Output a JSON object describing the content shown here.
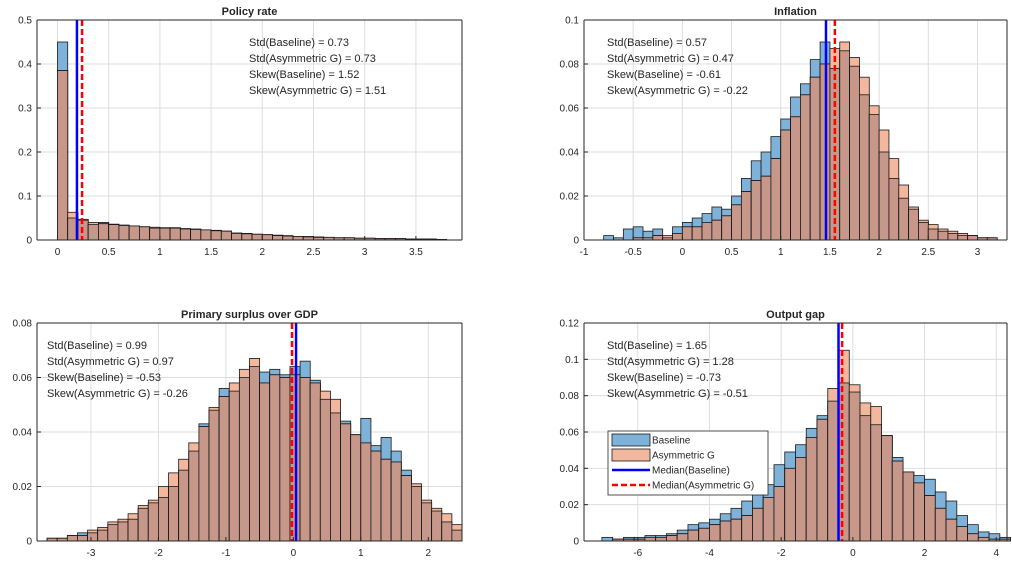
{
  "colors": {
    "baseline_fill": "#7fb2d9",
    "asym_fill": "#c7978a",
    "asym_only_fill": "#f2b79d",
    "median_baseline": "#0000ff",
    "median_asym": "#ff0000",
    "grid": "#dedede",
    "axis": "#262626"
  },
  "chart_data": [
    {
      "type": "bar",
      "title": "Policy rate",
      "xlim": [
        -0.2,
        3.95
      ],
      "ylim": [
        0,
        0.5
      ],
      "xticks": [
        0,
        0.5,
        1,
        1.5,
        2,
        2.5,
        3,
        3.5
      ],
      "xtick_labels": [
        "0",
        "0.5",
        "1",
        "1.5",
        "2",
        "2.5",
        "3",
        "3.5"
      ],
      "yticks": [
        0,
        0.1,
        0.2,
        0.3,
        0.4,
        0.5
      ],
      "ytick_labels": [
        "0",
        "0.1",
        "0.2",
        "0.3",
        "0.4",
        "0.5"
      ],
      "bin_start": 0,
      "bin_width": 0.1,
      "series": [
        {
          "name": "Baseline",
          "values": [
            0.45,
            0.05,
            0.045,
            0.035,
            0.04,
            0.035,
            0.034,
            0.032,
            0.03,
            0.027,
            0.028,
            0.027,
            0.026,
            0.025,
            0.023,
            0.022,
            0.02,
            0.015,
            0.014,
            0.013,
            0.012,
            0.01,
            0.009,
            0.008,
            0.007,
            0.006,
            0.006,
            0.005,
            0.005,
            0.004,
            0.004,
            0.003,
            0.003,
            0.003,
            0.002,
            0.002,
            0.002,
            0.001
          ]
        },
        {
          "name": "Asymmetric G",
          "values": [
            0.385,
            0.063,
            0.047,
            0.04,
            0.037,
            0.036,
            0.033,
            0.032,
            0.03,
            0.029,
            0.027,
            0.028,
            0.025,
            0.024,
            0.023,
            0.021,
            0.02,
            0.016,
            0.015,
            0.013,
            0.012,
            0.011,
            0.01,
            0.008,
            0.008,
            0.007,
            0.006,
            0.005,
            0.005,
            0.004,
            0.004,
            0.003,
            0.003,
            0.003,
            0.002,
            0.002,
            0.002,
            0.001
          ]
        }
      ],
      "median_baseline": 0.19,
      "median_asym": 0.24,
      "stats": [
        {
          "label": "Std(Baseline)",
          "value": "=  0.73"
        },
        {
          "label": "Std(Asymmetric G)",
          "value": "=  0.73"
        },
        {
          "label": "Skew(Baseline)",
          "value": "=  1.52"
        },
        {
          "label": "Skew(Asymmetric G)",
          "value": "=  1.51"
        }
      ],
      "stats_anchor": "top-right"
    },
    {
      "type": "bar",
      "title": "Inflation",
      "xlim": [
        -1,
        3.3
      ],
      "ylim": [
        0,
        0.1
      ],
      "xticks": [
        -1,
        -0.5,
        0,
        0.5,
        1,
        1.5,
        2,
        2.5,
        3
      ],
      "xtick_labels": [
        "-1",
        "-0.5",
        "0",
        "0.5",
        "1",
        "1.5",
        "2",
        "2.5",
        "3"
      ],
      "yticks": [
        0,
        0.02,
        0.04,
        0.06,
        0.08,
        0.1
      ],
      "ytick_labels": [
        "0",
        "0.02",
        "0.04",
        "0.06",
        "0.08",
        "0.1"
      ],
      "bin_start": -0.8,
      "bin_width": 0.1,
      "series": [
        {
          "name": "Baseline",
          "values": [
            0.002,
            0.001,
            0.005,
            0.006,
            0.004,
            0.005,
            0.001,
            0.006,
            0.008,
            0.01,
            0.012,
            0.015,
            0.014,
            0.02,
            0.028,
            0.036,
            0.04,
            0.047,
            0.055,
            0.065,
            0.071,
            0.082,
            0.09,
            0.078,
            0.086,
            0.079,
            0.066,
            0.057,
            0.04,
            0.028,
            0.019,
            0.014,
            0.008,
            0.005,
            0.004,
            0.003,
            0.002,
            0.002,
            0.001,
            0.001
          ]
        },
        {
          "name": "Asymmetric G",
          "values": [
            0.0,
            0.0,
            0.0,
            0.001,
            0.001,
            0.002,
            0.002,
            0.003,
            0.006,
            0.006,
            0.008,
            0.009,
            0.011,
            0.016,
            0.022,
            0.027,
            0.029,
            0.037,
            0.05,
            0.056,
            0.066,
            0.074,
            0.08,
            0.087,
            0.09,
            0.083,
            0.074,
            0.061,
            0.05,
            0.037,
            0.025,
            0.015,
            0.009,
            0.007,
            0.005,
            0.004,
            0.003,
            0.002,
            0.001,
            0.001
          ]
        }
      ],
      "median_baseline": 1.46,
      "median_asym": 1.55,
      "stats": [
        {
          "label": "Std(Baseline)",
          "value": "=  0.57"
        },
        {
          "label": "Std(Asymmetric G)",
          "value": "=  0.47"
        },
        {
          "label": "Skew(Baseline)",
          "value": "=  -0.61"
        },
        {
          "label": "Skew(Asymmetric G)",
          "value": "=  -0.22"
        }
      ],
      "stats_anchor": "top-left"
    },
    {
      "type": "bar",
      "title": "Primary surplus over GDP",
      "xlim": [
        -3.8,
        2.5
      ],
      "ylim": [
        0,
        0.08
      ],
      "xticks": [
        -3,
        -2,
        -1,
        0,
        1,
        2
      ],
      "xtick_labels": [
        "-3",
        "-2",
        "-1",
        "0",
        "1",
        "2"
      ],
      "yticks": [
        0,
        0.02,
        0.04,
        0.06,
        0.08
      ],
      "ytick_labels": [
        "0",
        "0.02",
        "0.04",
        "0.06",
        "0.08"
      ],
      "bin_start": -3.65,
      "bin_width": 0.15,
      "series": [
        {
          "name": "Baseline",
          "values": [
            0.001,
            0.001,
            0.002,
            0.003,
            0.003,
            0.004,
            0.006,
            0.007,
            0.008,
            0.012,
            0.014,
            0.016,
            0.02,
            0.026,
            0.033,
            0.043,
            0.048,
            0.056,
            0.055,
            0.06,
            0.064,
            0.062,
            0.063,
            0.061,
            0.064,
            0.066,
            0.059,
            0.052,
            0.047,
            0.044,
            0.039,
            0.045,
            0.035,
            0.038,
            0.033,
            0.026,
            0.02,
            0.014,
            0.011,
            0.007,
            0.004
          ]
        },
        {
          "name": "Asymmetric G",
          "values": [
            0.001,
            0.001,
            0.002,
            0.002,
            0.004,
            0.005,
            0.007,
            0.008,
            0.01,
            0.013,
            0.015,
            0.02,
            0.025,
            0.03,
            0.036,
            0.042,
            0.049,
            0.053,
            0.058,
            0.063,
            0.067,
            0.058,
            0.061,
            0.06,
            0.061,
            0.06,
            0.058,
            0.055,
            0.052,
            0.043,
            0.039,
            0.036,
            0.033,
            0.03,
            0.029,
            0.024,
            0.021,
            0.015,
            0.012,
            0.01,
            0.006
          ]
        }
      ],
      "median_baseline": 0.04,
      "median_asym": -0.02,
      "stats": [
        {
          "label": "Std(Baseline)",
          "value": "=  0.99"
        },
        {
          "label": "Std(Asymmetric G)",
          "value": "=  0.97"
        },
        {
          "label": "Skew(Baseline)",
          "value": "=  -0.53"
        },
        {
          "label": "Skew(Asymmetric G)",
          "value": "=  -0.26"
        }
      ],
      "stats_anchor": "top-left"
    },
    {
      "type": "bar",
      "title": "Output gap",
      "xlim": [
        -7.5,
        4.3
      ],
      "ylim": [
        0,
        0.12
      ],
      "xticks": [
        -6,
        -4,
        -2,
        0,
        2,
        4
      ],
      "xtick_labels": [
        "-6",
        "-4",
        "-2",
        "0",
        "2",
        "4"
      ],
      "yticks": [
        0,
        0.02,
        0.04,
        0.06,
        0.08,
        0.1,
        0.12
      ],
      "ytick_labels": [
        "0",
        "0.02",
        "0.04",
        "0.06",
        "0.08",
        "0.1",
        "0.12"
      ],
      "bin_start": -7,
      "bin_width": 0.3,
      "series": [
        {
          "name": "Baseline",
          "values": [
            0.002,
            0.001,
            0.002,
            0.002,
            0.003,
            0.003,
            0.004,
            0.006,
            0.009,
            0.01,
            0.012,
            0.015,
            0.018,
            0.022,
            0.026,
            0.031,
            0.042,
            0.049,
            0.053,
            0.062,
            0.069,
            0.077,
            0.087,
            0.082,
            0.069,
            0.064,
            0.058,
            0.046,
            0.038,
            0.036,
            0.034,
            0.027,
            0.022,
            0.014,
            0.009,
            0.005,
            0.004,
            0.002
          ]
        },
        {
          "name": "Asymmetric G",
          "values": [
            0.0,
            0.001,
            0.001,
            0.001,
            0.002,
            0.002,
            0.003,
            0.004,
            0.006,
            0.007,
            0.009,
            0.011,
            0.012,
            0.014,
            0.018,
            0.024,
            0.03,
            0.04,
            0.046,
            0.057,
            0.067,
            0.084,
            0.105,
            0.086,
            0.076,
            0.074,
            0.058,
            0.044,
            0.038,
            0.032,
            0.025,
            0.018,
            0.012,
            0.008,
            0.004,
            0.002,
            0.001,
            0.001
          ]
        }
      ],
      "median_baseline": -0.4,
      "median_asym": -0.3,
      "stats": [
        {
          "label": "Std(Baseline)",
          "value": "=  1.65"
        },
        {
          "label": "Std(Asymmetric G)",
          "value": "=  1.28"
        },
        {
          "label": "Skew(Baseline)",
          "value": "=  -0.73"
        },
        {
          "label": "Skew(Asymmetric G)",
          "value": "=  -0.51"
        }
      ],
      "stats_anchor": "top-left",
      "legend": {
        "position": "center-left",
        "entries": [
          "Baseline",
          "Asymmetric G",
          "Median(Baseline)",
          "Median(Asymmetric G)"
        ]
      }
    }
  ]
}
